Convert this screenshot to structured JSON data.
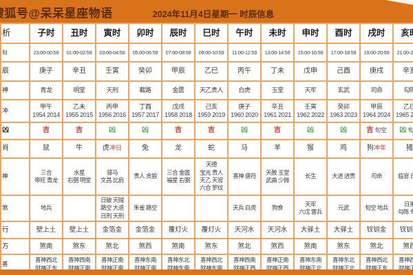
{
  "colors": {
    "banner_bg": "#d9731b",
    "banner_text": "#5b2c04",
    "grid": "#eda45f",
    "cell_text": "#3a3a3a",
    "ji_red": "#c9342a",
    "xiong_green": "#4cab50"
  },
  "banner": {
    "account": "搜狐号@呆呆星座物语",
    "title": "2024年11月4日星期一 时辰信息"
  },
  "table": {
    "header_label": "析",
    "columns": [
      "子时",
      "丑时",
      "寅时",
      "卯时",
      "辰时",
      "巳时",
      "午时",
      "未时",
      "申时",
      "酉时",
      "戌时",
      "亥时"
    ],
    "rows": [
      {
        "key": "shike",
        "label": "刻",
        "cells": [
          "23:00-00:59",
          "01:00-02:59",
          "03:00-04:59",
          "05:00-06:59",
          "07:00-08:59",
          "09:00-10:59",
          "11:00-12:59",
          "13:00-14:59",
          "15:00-16:59",
          "17:00-18:59",
          "19:00-20:59",
          "21:00-22:59"
        ]
      },
      {
        "key": "shichen",
        "label": "辰",
        "cells": [
          "庚子",
          "辛丑",
          "壬寅",
          "癸卯",
          "甲辰",
          "乙巳",
          "丙午",
          "丁未",
          "戊申",
          "己酉",
          "庚戌",
          "辛亥"
        ]
      },
      {
        "key": "shen1",
        "label": "神",
        "cells": [
          "青龙",
          "明堂",
          "天刑",
          "截路",
          "金匮",
          "天乙贵人",
          "白虎",
          "玉堂",
          "天牢",
          "玄武",
          "司命",
          "勾陈"
        ]
      },
      {
        "key": "chong",
        "label": "冲",
        "cells": [
          [
            "甲午",
            "1954 2014"
          ],
          [
            "乙未",
            "1955 2015"
          ],
          [
            "丙申",
            "1956 2016"
          ],
          [
            "丁酉",
            "1957 2017"
          ],
          [
            "戊戌",
            "1958 2018"
          ],
          [
            "己亥",
            "1959 2019"
          ],
          [
            "庚子",
            "1960 2020"
          ],
          [
            "辛丑",
            "1961 2021"
          ],
          [
            "壬寅",
            "1962 2022"
          ],
          [
            "癸卯",
            "1963 2023"
          ],
          [
            "甲辰",
            "1964 2024"
          ],
          [
            "乙巳",
            "1965 2025"
          ]
        ]
      },
      {
        "key": "jixiong",
        "label": "凶",
        "cells": [
          {
            "v": "吉"
          },
          {
            "v": "吉"
          },
          {
            "v": "凶"
          },
          {
            "v": "凶"
          },
          {
            "v": "吉"
          },
          {
            "v": "吉"
          },
          {
            "v": "凶"
          },
          {
            "v": "吉"
          },
          {
            "v": "凶"
          },
          {
            "v": "凶"
          },
          {
            "v": "吉",
            "x": "旬空"
          },
          {
            "v": "凶",
            "x": "旬空"
          }
        ]
      },
      {
        "key": "shengxiao",
        "label": "肖",
        "cells": [
          {
            "a": "鼠"
          },
          {
            "a": "牛"
          },
          {
            "a": "虎",
            "m": "冲日"
          },
          {
            "a": "兔"
          },
          {
            "a": "龙"
          },
          {
            "a": "蛇"
          },
          {
            "a": "马"
          },
          {
            "a": "羊"
          },
          {
            "a": "猴"
          },
          {
            "a": "鸡"
          },
          {
            "a": "狗",
            "m": "冲年"
          },
          {
            "a": "猪"
          }
        ]
      },
      {
        "key": "shen2",
        "label": "神",
        "cells": [
          [
            "三合",
            "帝旺 青龙"
          ],
          [
            "水星",
            "右弼 明堂"
          ],
          [
            "驿马",
            "文昌 比肩"
          ],
          [
            "贵人 贪狼"
          ],
          [
            "三合 金匮",
            "福星 右弼"
          ],
          [
            "天德",
            "宝光 贵人",
            "天乙 天官",
            "六合 罗纹"
          ],
          [
            "喜神 唐符"
          ],
          [
            "天赦 玉堂",
            "武曲 少微"
          ],
          [
            "长生"
          ],
          [
            "大进 进贵"
          ],
          [
            "司命"
          ],
          [
            "临官 日禄"
          ]
        ]
      },
      {
        "key": "sha",
        "label": "煞",
        "cells": [
          [
            "地兵"
          ],
          [],
          [
            "日破 天贼",
            "路空 大退",
            "日刑 天刑"
          ],
          [
            "朱雀 路空"
          ],
          [],
          [],
          [
            "天兵 白虎"
          ],
          [
            "狗食"
          ],
          [
            "天牢",
            "六戊 雷兵"
          ],
          [
            "元武"
          ],
          [
            "旬空 地兵"
          ],
          [
            "日害",
            "勾陈 旬空"
          ]
        ]
      },
      {
        "key": "wuxing",
        "label": "行",
        "cells": [
          "壁上土",
          "壁上土",
          "金箔金",
          "金箔金",
          "覆灯火",
          "覆灯火",
          "天河水",
          "天河水",
          "大驿土",
          "大驿土",
          "钗钏金",
          "钗钏金"
        ]
      },
      {
        "key": "shafang",
        "label": "方",
        "cells": [
          "煞南",
          "煞东",
          "煞北",
          "煞西",
          "煞南",
          "煞东",
          "煞北",
          "煞西",
          "煞南",
          "煞东",
          "煞北",
          "煞西"
        ]
      },
      {
        "key": "xi",
        "label": "喜",
        "cells": [
          [
            "喜神西北",
            "财神正东"
          ],
          [
            "喜神西南",
            "财神正南"
          ],
          [
            "喜神正南",
            "财神正南"
          ],
          [
            "喜神东南",
            "财神正南"
          ],
          [
            "喜神东北",
            "财神东南"
          ],
          [
            "喜神西北",
            "财神东南"
          ],
          [
            "喜神西南",
            "财神正西"
          ],
          [
            "喜神正南",
            "财神正西"
          ],
          [
            "喜神东南",
            "财神正北"
          ],
          [
            "喜神东北",
            "财神正北"
          ],
          [
            "喜神西北",
            "财神正东"
          ],
          [
            "喜神西南",
            "财神正南"
          ]
        ]
      }
    ]
  }
}
